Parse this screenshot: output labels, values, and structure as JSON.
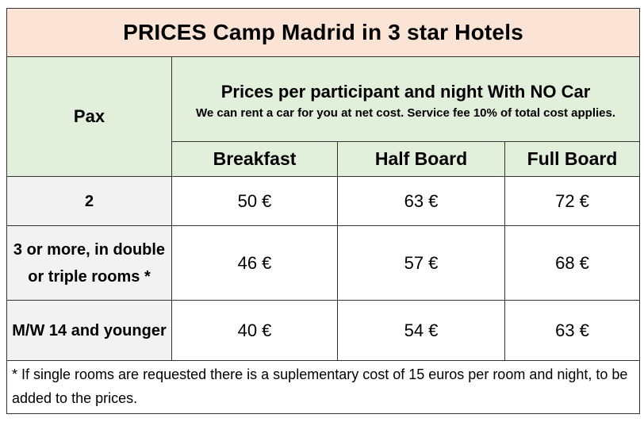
{
  "title": "PRICES Camp Madrid in 3 star Hotels",
  "pax_header": "Pax",
  "group_header": {
    "title": "Prices per participant and night With NO Car",
    "note": "We can rent a car for you at net cost. Service fee 10% of total cost applies."
  },
  "columns": [
    "Breakfast",
    "Half Board",
    "Full Board"
  ],
  "rows": [
    {
      "pax": "2",
      "prices": [
        "50 €",
        "63 €",
        "72 €"
      ]
    },
    {
      "pax": "3 or more, in double or triple rooms *",
      "prices": [
        "46 €",
        "57 €",
        "68 €"
      ]
    },
    {
      "pax": "M/W 14 and younger",
      "prices": [
        "40 €",
        "54 €",
        "63 €"
      ]
    }
  ],
  "footnote": "* If single rooms are requested there is a suplementary cost of 15 euros per room and night, to be added to the prices.",
  "colors": {
    "title_bg": "#fbe3d6",
    "header_bg": "#e2efda",
    "label_bg": "#f2f2f2"
  }
}
